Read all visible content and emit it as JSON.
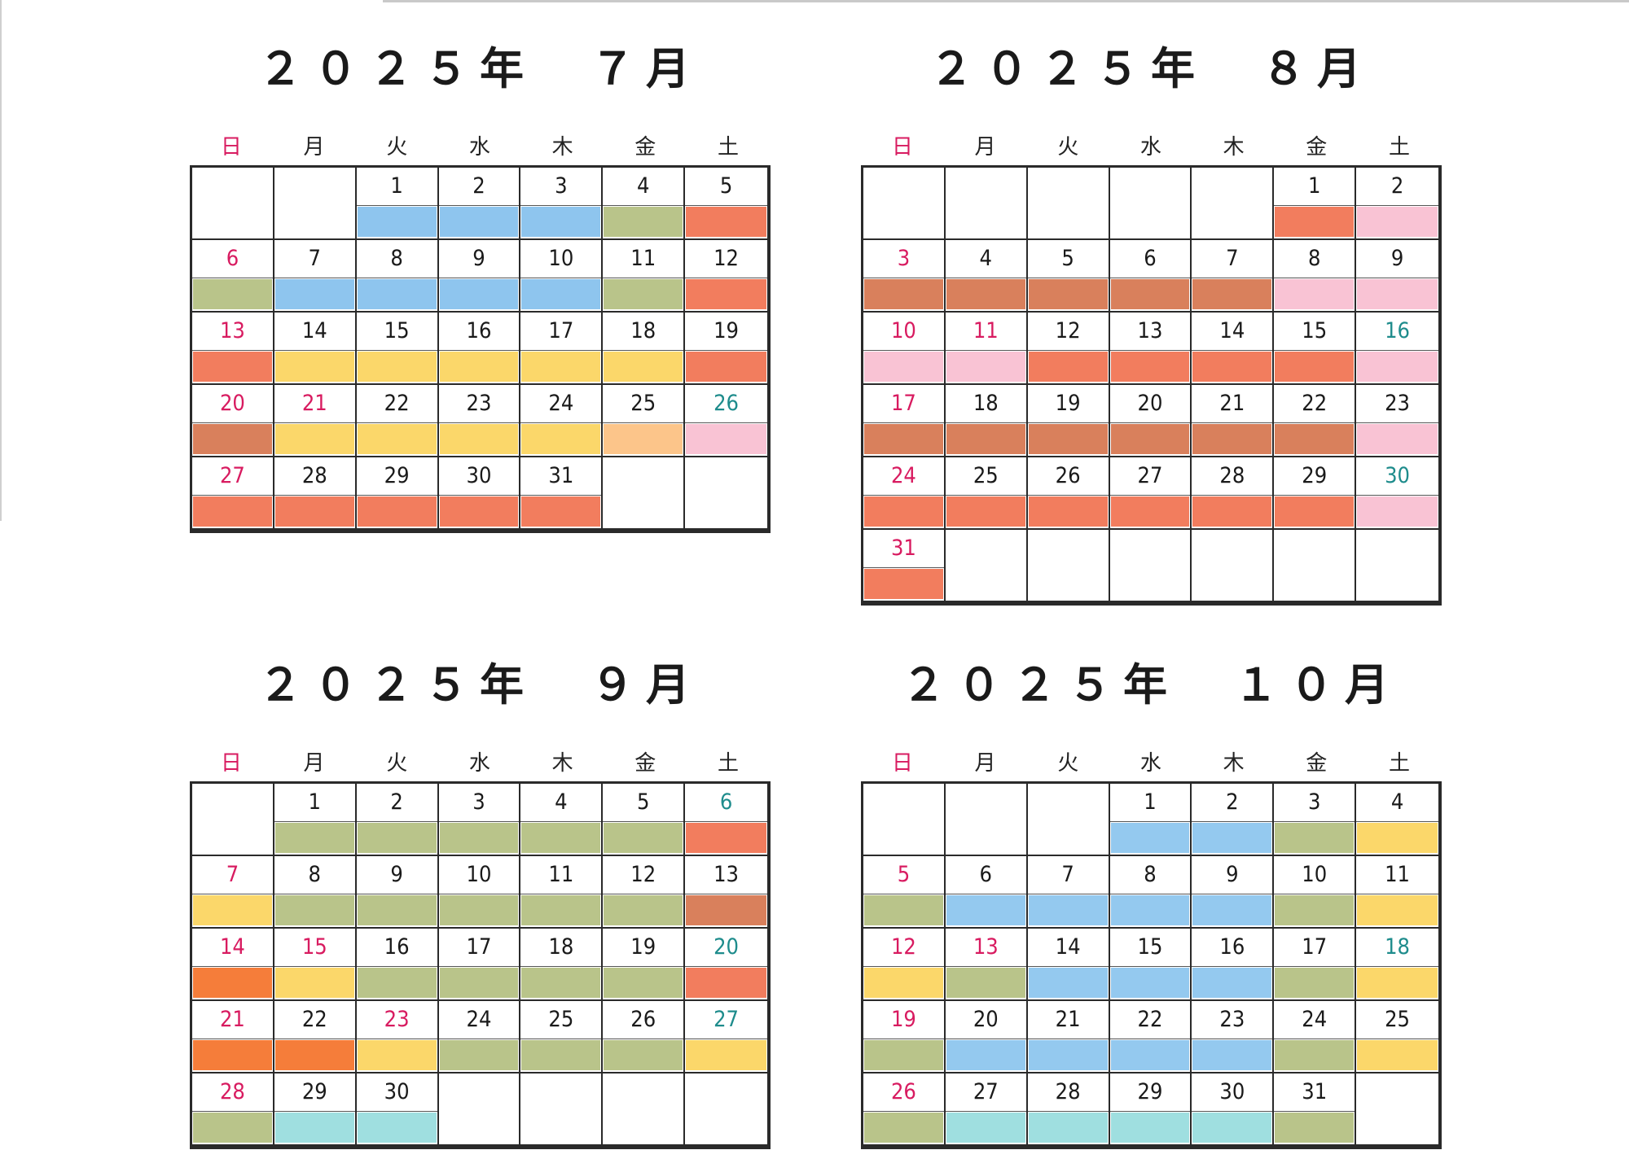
{
  "weekdays": [
    "日",
    "月",
    "火",
    "水",
    "木",
    "金",
    "土"
  ],
  "colors": {
    "blue": "#8ec5ee",
    "olive": "#b9c48a",
    "red": "#f27d5e",
    "brown": "#d9805c",
    "yellow": "#fbd76a",
    "peach": "#fcc58a",
    "pink": "#f9c3d4",
    "orange": "#f57d3a",
    "aqua": "#9fdfe0",
    "lightblue": "#94c9ef"
  },
  "months": [
    {
      "title": "２０２５年　７月",
      "first_weekday": 2,
      "days": [
        {
          "d": "1",
          "c": "blue"
        },
        {
          "d": "2",
          "c": "blue"
        },
        {
          "d": "3",
          "c": "blue"
        },
        {
          "d": "4",
          "c": "olive"
        },
        {
          "d": "5",
          "c": "red"
        },
        {
          "d": "6",
          "c": "olive",
          "r": 1
        },
        {
          "d": "7",
          "c": "blue"
        },
        {
          "d": "8",
          "c": "blue"
        },
        {
          "d": "9",
          "c": "blue"
        },
        {
          "d": "10",
          "c": "blue"
        },
        {
          "d": "11",
          "c": "olive"
        },
        {
          "d": "12",
          "c": "red"
        },
        {
          "d": "13",
          "c": "red",
          "r": 1
        },
        {
          "d": "14",
          "c": "yellow"
        },
        {
          "d": "15",
          "c": "yellow"
        },
        {
          "d": "16",
          "c": "yellow"
        },
        {
          "d": "17",
          "c": "yellow"
        },
        {
          "d": "18",
          "c": "yellow"
        },
        {
          "d": "19",
          "c": "red"
        },
        {
          "d": "20",
          "c": "brown",
          "r": 1
        },
        {
          "d": "21",
          "c": "yellow",
          "r": 1
        },
        {
          "d": "22",
          "c": "yellow"
        },
        {
          "d": "23",
          "c": "yellow"
        },
        {
          "d": "24",
          "c": "yellow"
        },
        {
          "d": "25",
          "c": "peach"
        },
        {
          "d": "26",
          "c": "pink",
          "t": 1
        },
        {
          "d": "27",
          "c": "red",
          "r": 1
        },
        {
          "d": "28",
          "c": "red"
        },
        {
          "d": "29",
          "c": "red"
        },
        {
          "d": "30",
          "c": "red"
        },
        {
          "d": "31",
          "c": "red"
        }
      ],
      "rows": 5
    },
    {
      "title": "２０２５年　８月",
      "first_weekday": 5,
      "days": [
        {
          "d": "1",
          "c": "red"
        },
        {
          "d": "2",
          "c": "pink"
        },
        {
          "d": "3",
          "c": "brown",
          "r": 1
        },
        {
          "d": "4",
          "c": "brown"
        },
        {
          "d": "5",
          "c": "brown"
        },
        {
          "d": "6",
          "c": "brown"
        },
        {
          "d": "7",
          "c": "brown"
        },
        {
          "d": "8",
          "c": "pink"
        },
        {
          "d": "9",
          "c": "pink"
        },
        {
          "d": "10",
          "c": "pink",
          "r": 1
        },
        {
          "d": "11",
          "c": "pink",
          "r": 1
        },
        {
          "d": "12",
          "c": "red"
        },
        {
          "d": "13",
          "c": "red"
        },
        {
          "d": "14",
          "c": "red"
        },
        {
          "d": "15",
          "c": "red"
        },
        {
          "d": "16",
          "c": "pink",
          "t": 1
        },
        {
          "d": "17",
          "c": "brown",
          "r": 1
        },
        {
          "d": "18",
          "c": "brown"
        },
        {
          "d": "19",
          "c": "brown"
        },
        {
          "d": "20",
          "c": "brown"
        },
        {
          "d": "21",
          "c": "brown"
        },
        {
          "d": "22",
          "c": "brown"
        },
        {
          "d": "23",
          "c": "pink"
        },
        {
          "d": "24",
          "c": "red",
          "r": 1
        },
        {
          "d": "25",
          "c": "red"
        },
        {
          "d": "26",
          "c": "red"
        },
        {
          "d": "27",
          "c": "red"
        },
        {
          "d": "28",
          "c": "red"
        },
        {
          "d": "29",
          "c": "red"
        },
        {
          "d": "30",
          "c": "pink",
          "t": 1
        },
        {
          "d": "31",
          "c": "red",
          "r": 1
        }
      ],
      "rows": 6
    },
    {
      "title": "２０２５年　９月",
      "first_weekday": 1,
      "days": [
        {
          "d": "1",
          "c": "olive"
        },
        {
          "d": "2",
          "c": "olive"
        },
        {
          "d": "3",
          "c": "olive"
        },
        {
          "d": "4",
          "c": "olive"
        },
        {
          "d": "5",
          "c": "olive"
        },
        {
          "d": "6",
          "c": "red",
          "t": 1
        },
        {
          "d": "7",
          "c": "yellow",
          "r": 1
        },
        {
          "d": "8",
          "c": "olive"
        },
        {
          "d": "9",
          "c": "olive"
        },
        {
          "d": "10",
          "c": "olive"
        },
        {
          "d": "11",
          "c": "olive"
        },
        {
          "d": "12",
          "c": "olive"
        },
        {
          "d": "13",
          "c": "brown"
        },
        {
          "d": "14",
          "c": "orange",
          "r": 1
        },
        {
          "d": "15",
          "c": "yellow",
          "r": 1
        },
        {
          "d": "16",
          "c": "olive"
        },
        {
          "d": "17",
          "c": "olive"
        },
        {
          "d": "18",
          "c": "olive"
        },
        {
          "d": "19",
          "c": "olive"
        },
        {
          "d": "20",
          "c": "red",
          "t": 1
        },
        {
          "d": "21",
          "c": "orange",
          "r": 1
        },
        {
          "d": "22",
          "c": "orange"
        },
        {
          "d": "23",
          "c": "yellow",
          "r": 1
        },
        {
          "d": "24",
          "c": "olive"
        },
        {
          "d": "25",
          "c": "olive"
        },
        {
          "d": "26",
          "c": "olive"
        },
        {
          "d": "27",
          "c": "yellow",
          "t": 1
        },
        {
          "d": "28",
          "c": "olive",
          "r": 1
        },
        {
          "d": "29",
          "c": "aqua"
        },
        {
          "d": "30",
          "c": "aqua"
        }
      ],
      "rows": 5
    },
    {
      "title": "２０２５年　１０月",
      "first_weekday": 3,
      "days": [
        {
          "d": "1",
          "c": "lightblue"
        },
        {
          "d": "2",
          "c": "lightblue"
        },
        {
          "d": "3",
          "c": "olive"
        },
        {
          "d": "4",
          "c": "yellow"
        },
        {
          "d": "5",
          "c": "olive",
          "r": 1
        },
        {
          "d": "6",
          "c": "lightblue"
        },
        {
          "d": "7",
          "c": "lightblue"
        },
        {
          "d": "8",
          "c": "lightblue"
        },
        {
          "d": "9",
          "c": "lightblue"
        },
        {
          "d": "10",
          "c": "olive"
        },
        {
          "d": "11",
          "c": "yellow"
        },
        {
          "d": "12",
          "c": "yellow",
          "r": 1
        },
        {
          "d": "13",
          "c": "olive",
          "r": 1
        },
        {
          "d": "14",
          "c": "lightblue"
        },
        {
          "d": "15",
          "c": "lightblue"
        },
        {
          "d": "16",
          "c": "lightblue"
        },
        {
          "d": "17",
          "c": "olive"
        },
        {
          "d": "18",
          "c": "yellow",
          "t": 1
        },
        {
          "d": "19",
          "c": "olive",
          "r": 1
        },
        {
          "d": "20",
          "c": "lightblue"
        },
        {
          "d": "21",
          "c": "lightblue"
        },
        {
          "d": "22",
          "c": "lightblue"
        },
        {
          "d": "23",
          "c": "lightblue"
        },
        {
          "d": "24",
          "c": "olive"
        },
        {
          "d": "25",
          "c": "yellow"
        },
        {
          "d": "26",
          "c": "olive",
          "r": 1
        },
        {
          "d": "27",
          "c": "aqua"
        },
        {
          "d": "28",
          "c": "aqua"
        },
        {
          "d": "29",
          "c": "aqua"
        },
        {
          "d": "30",
          "c": "aqua"
        },
        {
          "d": "31",
          "c": "olive"
        }
      ],
      "rows": 5
    }
  ]
}
